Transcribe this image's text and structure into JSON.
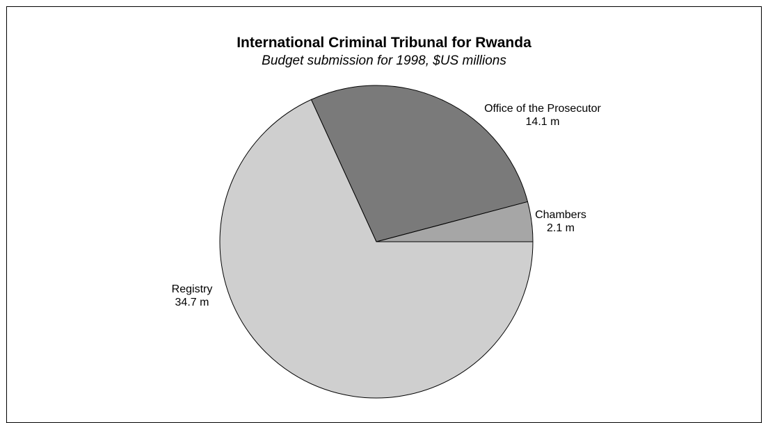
{
  "chart_data": {
    "type": "pie",
    "title": "International Criminal Tribunal for Rwanda",
    "subtitle": "Budget submission for 1998, $US millions",
    "slices": [
      {
        "label": "Chambers",
        "value": 2.1,
        "value_label": "2.1 m",
        "color": "#a6a6a6"
      },
      {
        "label": "Office of the Prosecutor",
        "value": 14.1,
        "value_label": "14.1 m",
        "color": "#7a7a7a"
      },
      {
        "label": "Registry",
        "value": 34.7,
        "value_label": "34.7 m",
        "color": "#cfcfcf"
      }
    ],
    "start_angle_deg": 0,
    "direction": "counterclockwise"
  }
}
